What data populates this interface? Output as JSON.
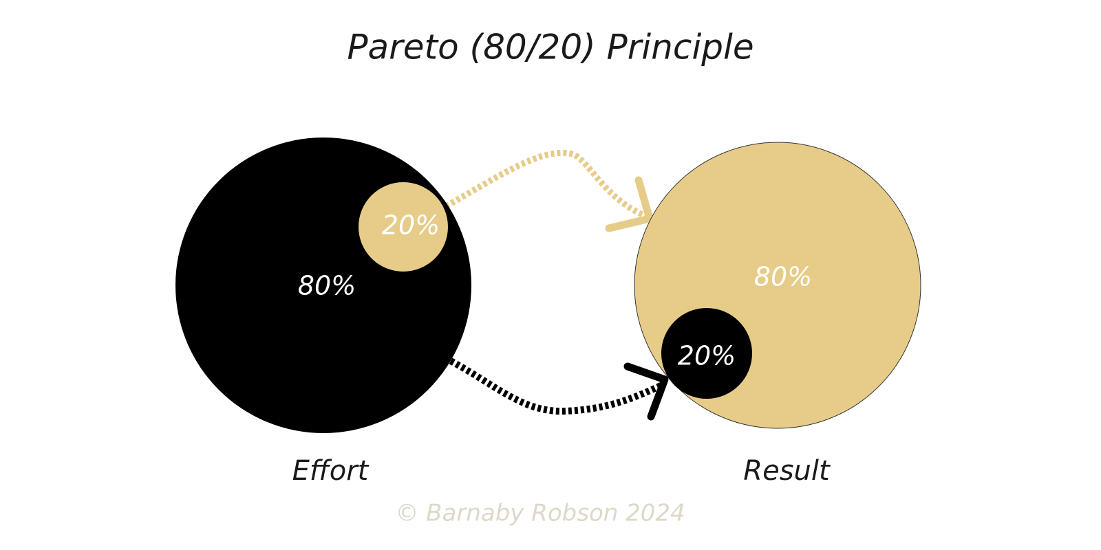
{
  "title": "Pareto (80/20) Principle",
  "effort": {
    "caption": "Effort",
    "outer_label": "80%",
    "inner_label": "20%"
  },
  "result": {
    "caption": "Result",
    "outer_label": "80%",
    "inner_label": "20%"
  },
  "footer": "© Barnaby Robson 2024"
}
